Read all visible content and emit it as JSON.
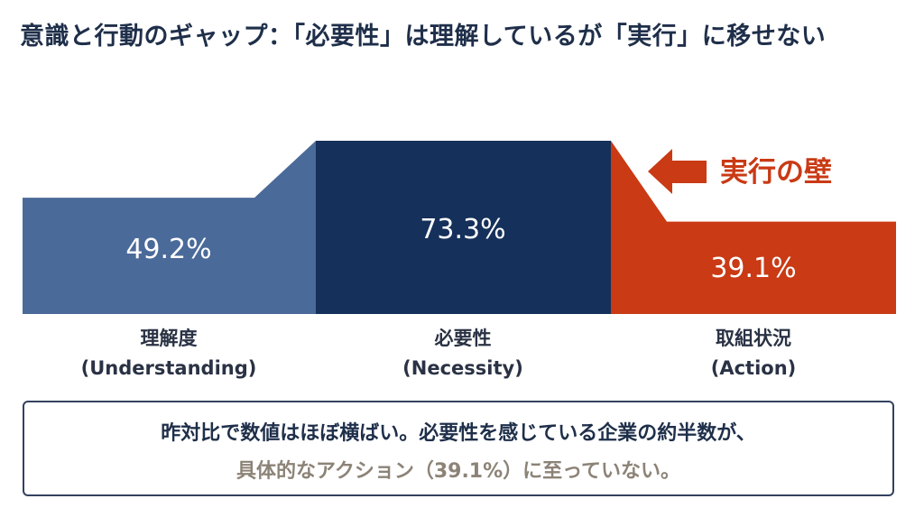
{
  "title": "意識と行動のギャップ：「必要性」は理解しているが「実行」に移せない",
  "colors": {
    "understanding": "#4a6a9a",
    "necessity": "#15305a",
    "action": "#c93a15",
    "title": "#1f2f4a",
    "summary_highlight": "#8c8377"
  },
  "chart_data": {
    "type": "bar",
    "categories": [
      "理解度\n(Understanding)",
      "必要性\n(Necessity)",
      "取組状況\n(Action)"
    ],
    "category_lines": [
      [
        "理解度",
        "(Understanding)"
      ],
      [
        "必要性",
        "(Necessity)"
      ],
      [
        "取組状況",
        "(Action)"
      ]
    ],
    "values": [
      49.2,
      73.3,
      39.1
    ],
    "value_labels": [
      "49.2%",
      "73.3%",
      "39.1%"
    ],
    "unit": "%",
    "annotation": "実行の壁",
    "annotation_icon": "left-arrow-icon"
  },
  "summary": {
    "line1": "昨対比で数値はほぼ横ばい。必要性を感じている企業の約半数が、",
    "line2": "具体的なアクション（39.1%）に至っていない。"
  }
}
